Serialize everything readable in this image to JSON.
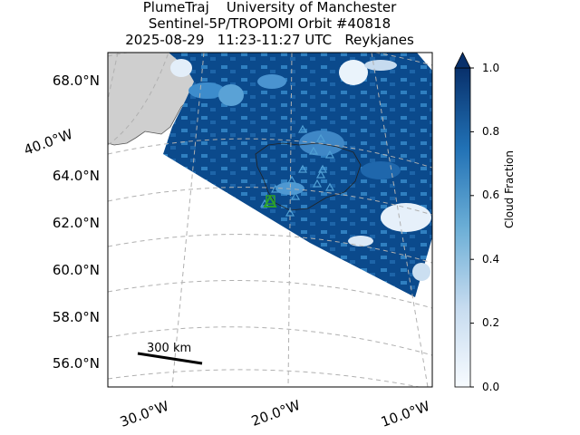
{
  "title": {
    "line1": "PlumeTraj    University of Manchester",
    "line2": "Sentinel-5P/TROPOMI Orbit #40818",
    "line3": "2025-08-29   11:23-11:27 UTC   Reykjanes"
  },
  "map": {
    "lat_labels": [
      "68.0°N",
      "64.0°N",
      "62.0°N",
      "60.0°N",
      "58.0°N",
      "56.0°N"
    ],
    "lon_labels_bottom": [
      "30.0°W",
      "20.0°W",
      "10.0°W"
    ],
    "lon_label_left": "40.0°W",
    "scale_bar_label": "300 km",
    "colors": {
      "land": "#cfcfcf",
      "cloud_low": "#f7fbff",
      "cloud_high": "#08306b",
      "vent_marker": "#2ca02c",
      "triangle_marker": "#4f9fd4",
      "grid": "#b0b0b0"
    }
  },
  "colorbar": {
    "label": "Cloud Fraction",
    "ticks": [
      "0.0",
      "0.2",
      "0.4",
      "0.6",
      "0.8",
      "1.0"
    ],
    "range": [
      0,
      1
    ]
  }
}
